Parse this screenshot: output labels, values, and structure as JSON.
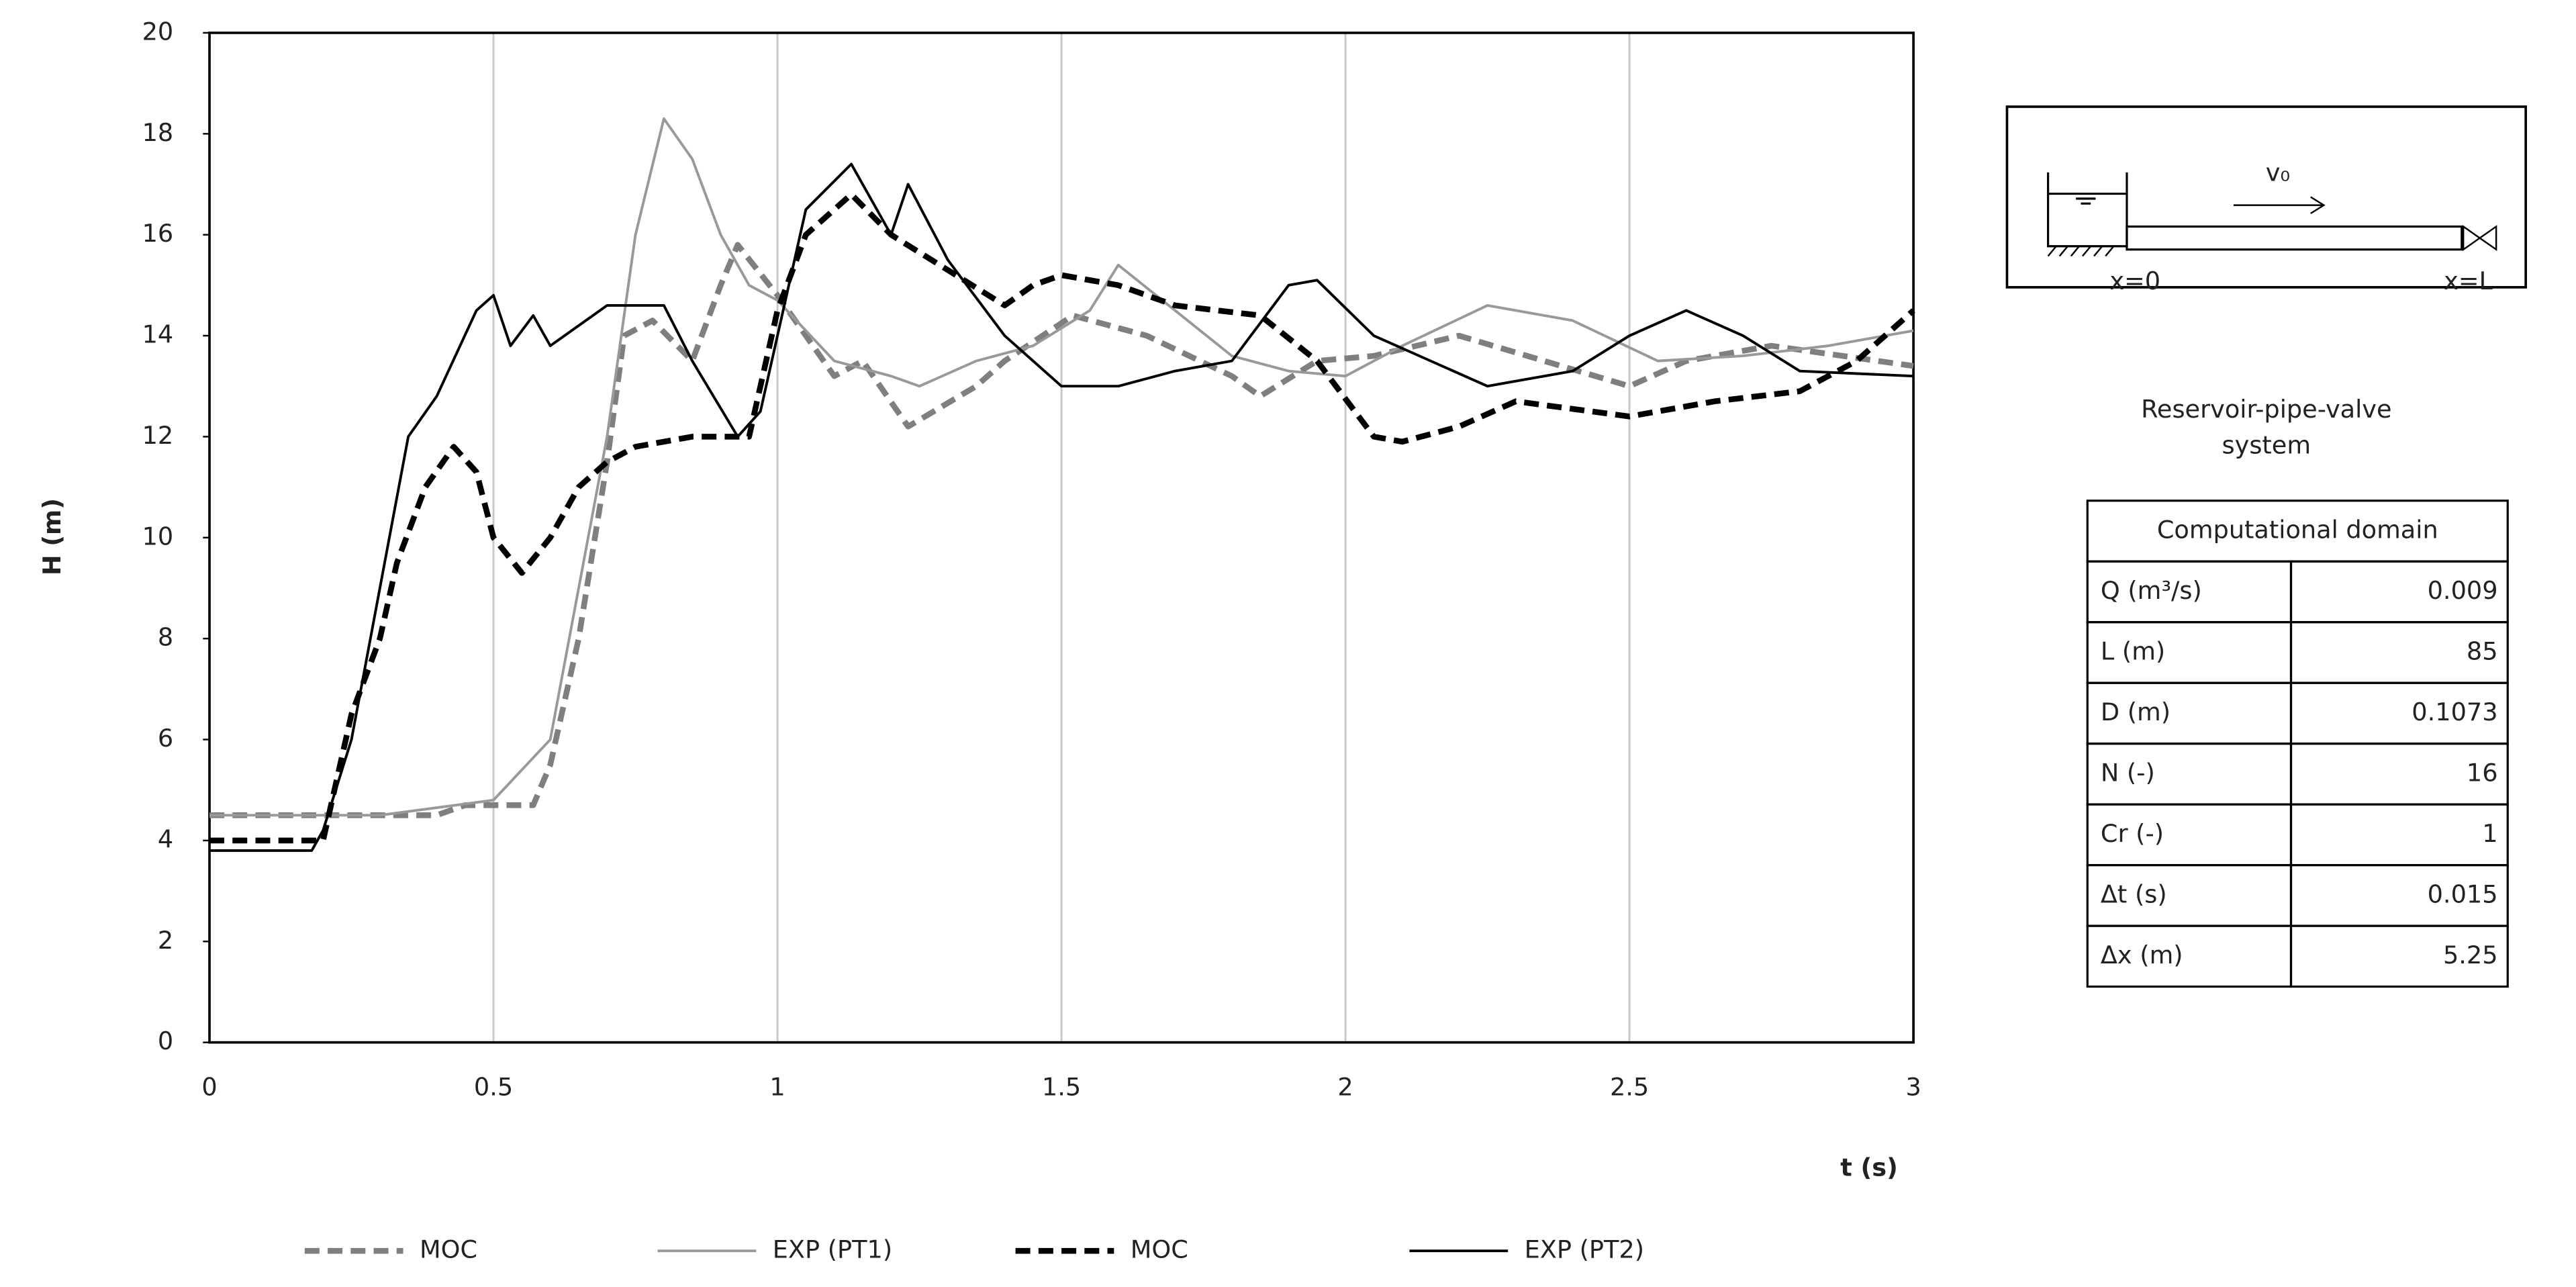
{
  "chart_data": {
    "type": "line",
    "x_label": "t (s)",
    "y_label": "H (m)",
    "xlim": [
      0,
      3
    ],
    "xticks": [
      0,
      0.5,
      1,
      1.5,
      2,
      2.5,
      3
    ],
    "ylim": [
      0,
      20
    ],
    "yticks": [
      0,
      2,
      4,
      6,
      8,
      10,
      12,
      14,
      16,
      18,
      20
    ],
    "grid": "x",
    "series": [
      {
        "name": "MOC",
        "color": "#7f7f7f",
        "line_style": "dashed",
        "x": [
          0,
          0.2,
          0.4,
          0.45,
          0.57,
          0.6,
          0.65,
          0.7,
          0.73,
          0.78,
          0.85,
          0.9,
          0.93,
          1.0,
          1.1,
          1.15,
          1.23,
          1.35,
          1.4,
          1.52,
          1.65,
          1.8,
          1.85,
          1.95,
          2.05,
          2.2,
          2.35,
          2.5,
          2.6,
          2.75,
          3
        ],
        "values": [
          4.5,
          4.5,
          4.5,
          4.7,
          4.7,
          5.5,
          8,
          11.5,
          14,
          14.3,
          13.5,
          15,
          15.8,
          14.8,
          13.2,
          13.5,
          12.2,
          13,
          13.5,
          14.4,
          14,
          13.2,
          12.8,
          13.5,
          13.6,
          14,
          13.5,
          13,
          13.5,
          13.8,
          13.4
        ]
      },
      {
        "name": "EXP (PT1)",
        "color": "#999999",
        "line_style": "solid",
        "x": [
          0,
          0.3,
          0.5,
          0.6,
          0.65,
          0.7,
          0.75,
          0.8,
          0.85,
          0.9,
          0.95,
          1.0,
          1.1,
          1.2,
          1.25,
          1.35,
          1.45,
          1.55,
          1.6,
          1.7,
          1.8,
          1.9,
          2.0,
          2.1,
          2.25,
          2.4,
          2.55,
          2.7,
          2.85,
          3
        ],
        "values": [
          4.5,
          4.5,
          4.8,
          6,
          9,
          12,
          16,
          18.3,
          17.5,
          16,
          15,
          14.7,
          13.5,
          13.2,
          13,
          13.5,
          13.8,
          14.5,
          15.4,
          14.5,
          13.6,
          13.3,
          13.2,
          13.8,
          14.6,
          14.3,
          13.5,
          13.6,
          13.8,
          14.1
        ]
      },
      {
        "name": "MOC",
        "color": "#000000",
        "line_style": "dashed",
        "x": [
          0,
          0.2,
          0.22,
          0.25,
          0.3,
          0.33,
          0.38,
          0.43,
          0.47,
          0.5,
          0.55,
          0.6,
          0.65,
          0.7,
          0.75,
          0.85,
          0.95,
          1.0,
          1.05,
          1.13,
          1.2,
          1.3,
          1.4,
          1.45,
          1.5,
          1.6,
          1.7,
          1.85,
          1.95,
          2.05,
          2.1,
          2.2,
          2.3,
          2.5,
          2.65,
          2.8,
          2.9,
          3
        ],
        "values": [
          4,
          4,
          5,
          6.5,
          8,
          9.5,
          11,
          11.8,
          11.3,
          10,
          9.3,
          10,
          11,
          11.5,
          11.8,
          12,
          12,
          14.5,
          16,
          16.8,
          16,
          15.3,
          14.6,
          15,
          15.2,
          15,
          14.6,
          14.4,
          13.5,
          12,
          11.9,
          12.2,
          12.7,
          12.4,
          12.7,
          12.9,
          13.5,
          14.5
        ]
      },
      {
        "name": "EXP (PT2)",
        "color": "#000000",
        "line_style": "solid",
        "x": [
          0,
          0.18,
          0.2,
          0.25,
          0.3,
          0.35,
          0.4,
          0.47,
          0.5,
          0.53,
          0.57,
          0.6,
          0.7,
          0.8,
          0.85,
          0.93,
          0.97,
          1.05,
          1.13,
          1.2,
          1.23,
          1.3,
          1.4,
          1.5,
          1.6,
          1.7,
          1.8,
          1.9,
          1.95,
          2.05,
          2.15,
          2.25,
          2.4,
          2.5,
          2.6,
          2.7,
          2.8,
          3
        ],
        "values": [
          3.8,
          3.8,
          4.2,
          6,
          9,
          12,
          12.8,
          14.5,
          14.8,
          13.8,
          14.4,
          13.8,
          14.6,
          14.6,
          13.5,
          12,
          12.5,
          16.5,
          17.4,
          16,
          17,
          15.5,
          14,
          13,
          13,
          13.3,
          13.5,
          15,
          15.1,
          14,
          13.5,
          13,
          13.3,
          14,
          14.5,
          14,
          13.3,
          13.2
        ]
      }
    ]
  },
  "diagram": {
    "velocity_label": "v₀",
    "left_label": "x=0",
    "right_label": "x=L",
    "caption": [
      "Reservoir-pipe-valve",
      "system"
    ]
  },
  "table": {
    "title": "Computational domain",
    "rows": [
      [
        "Q (m³/s)",
        "0.009"
      ],
      [
        "L (m)",
        "85"
      ],
      [
        "D (m)",
        "0.1073"
      ],
      [
        "N (-)",
        "16"
      ],
      [
        "Cr (-)",
        "1"
      ],
      [
        "Δt (s)",
        "0.015"
      ],
      [
        "Δx (m)",
        "5.25"
      ]
    ]
  }
}
